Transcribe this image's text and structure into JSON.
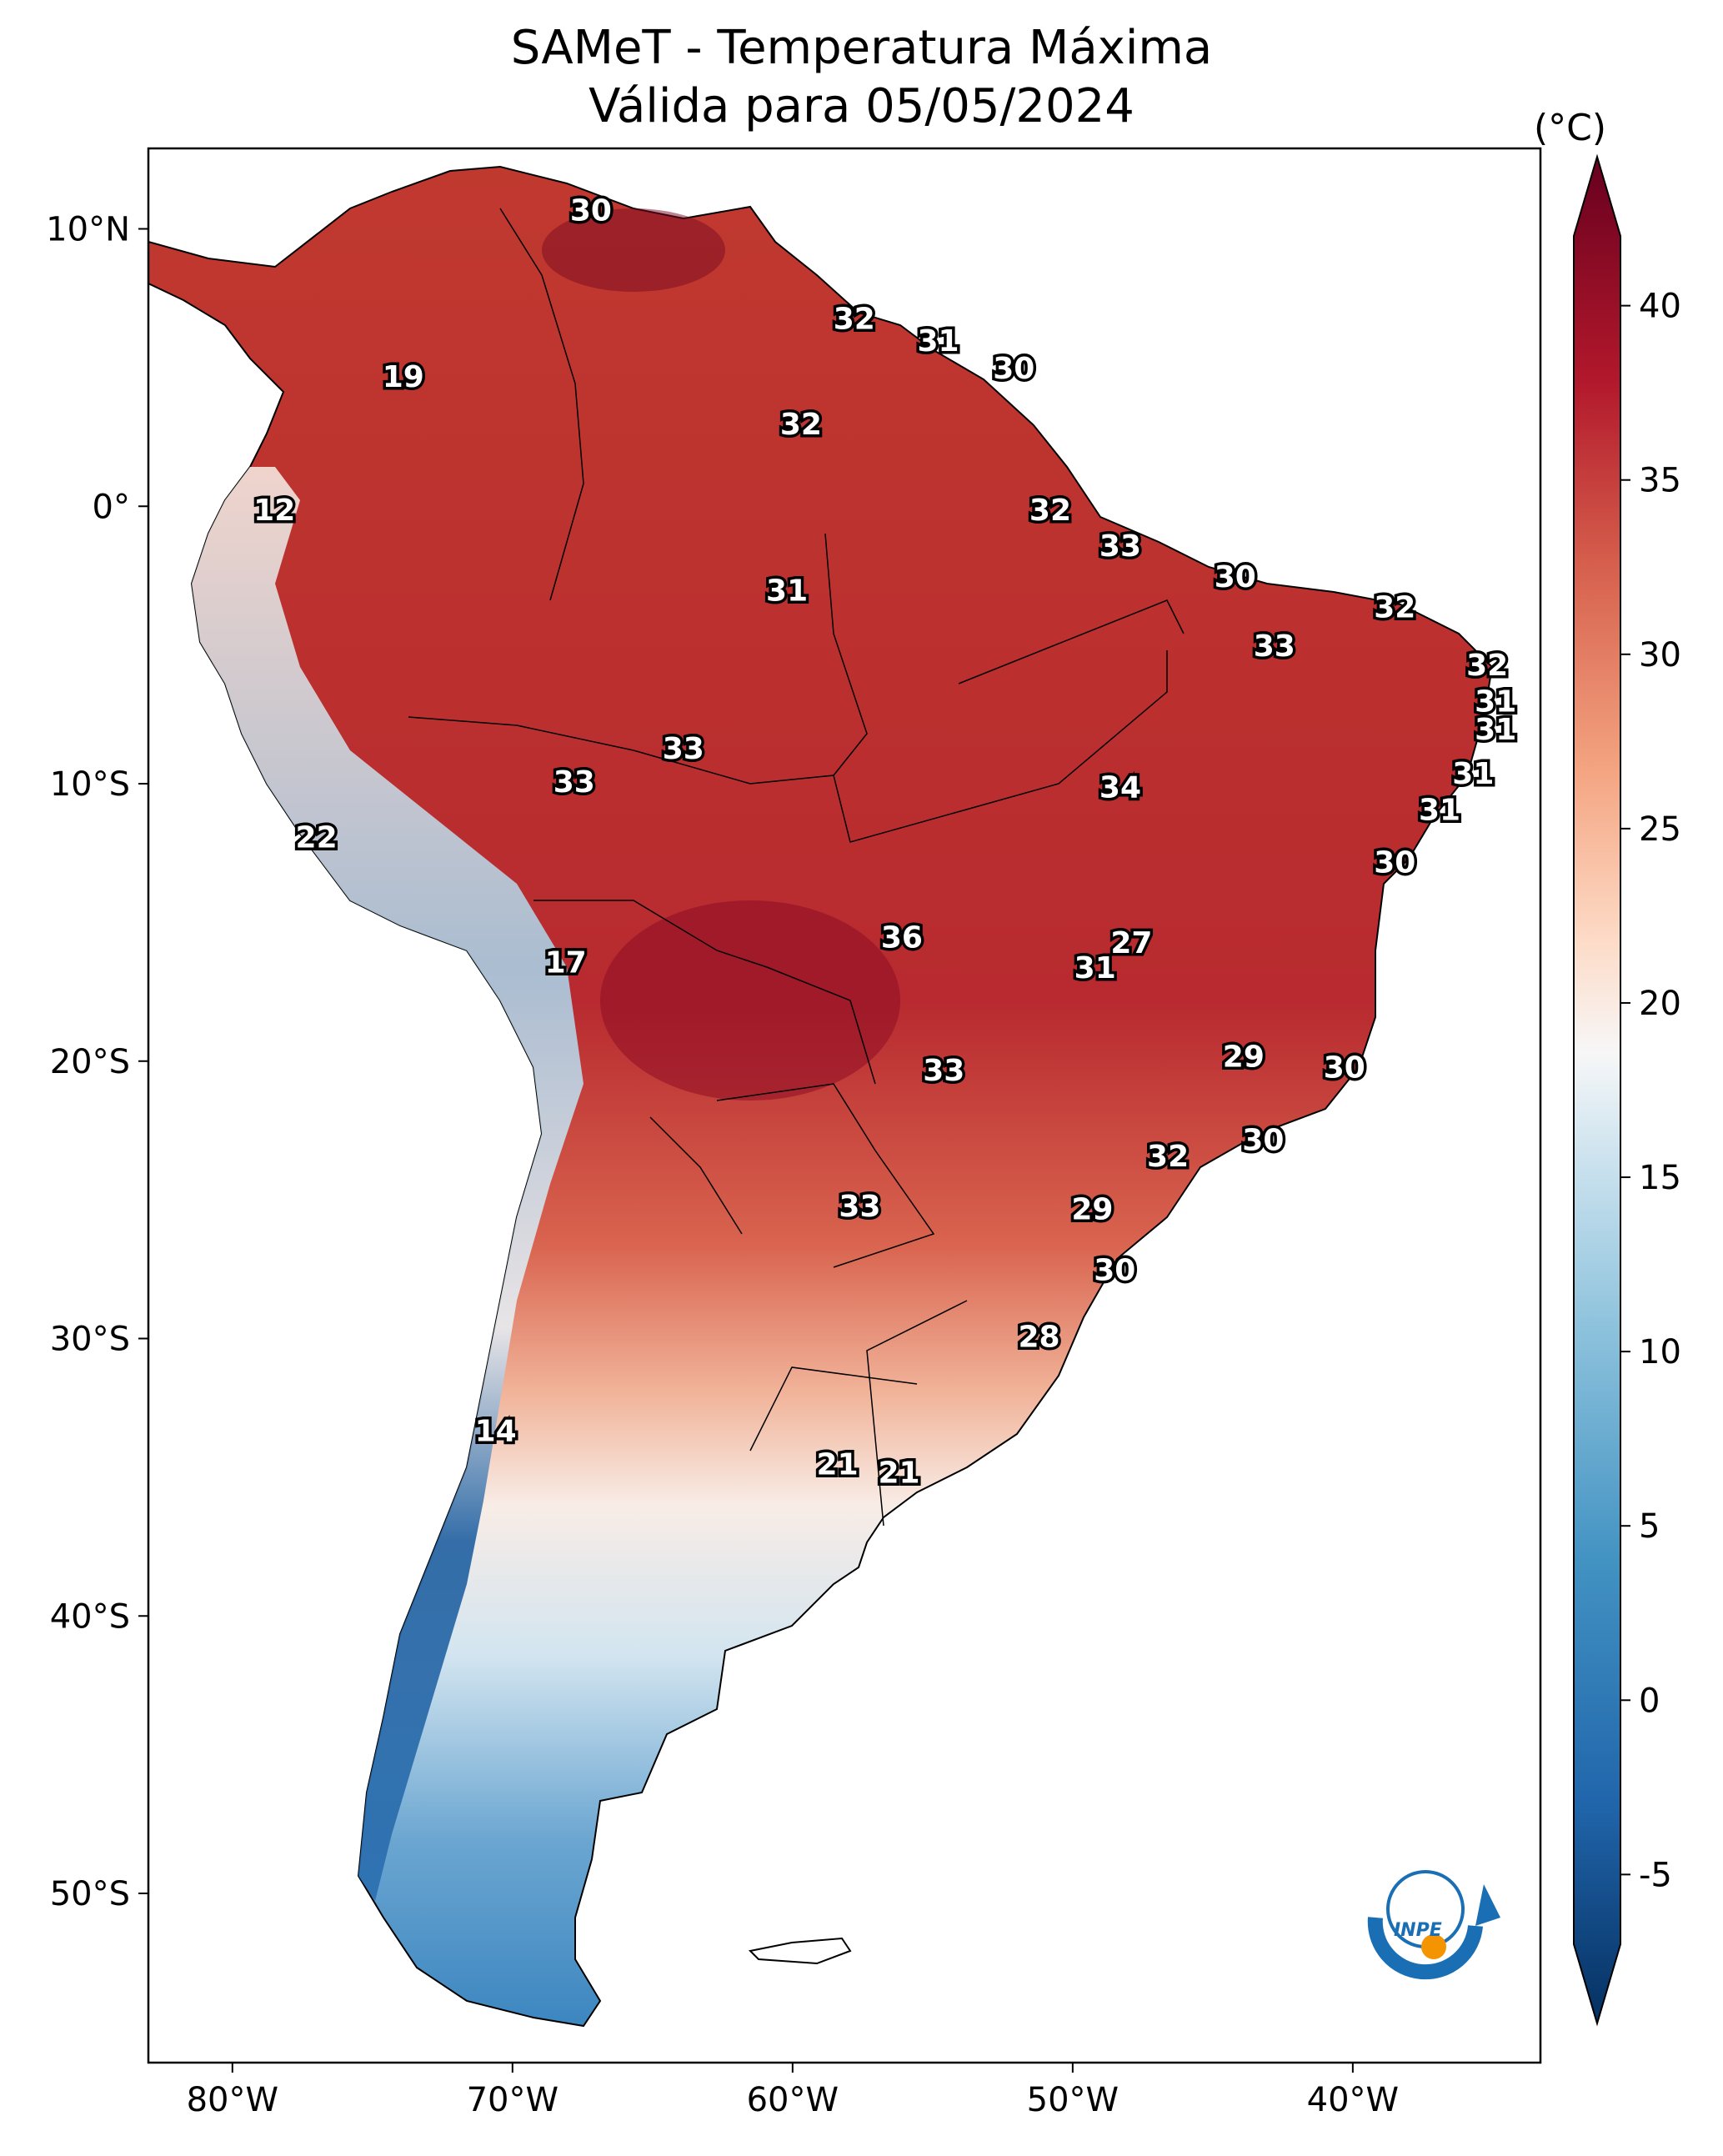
{
  "title": {
    "line1": "SAMeT - Temperatura Máxima",
    "line2": "Válida para 05/05/2024"
  },
  "map": {
    "lon_ticks": [
      "80°W",
      "70°W",
      "60°W",
      "50°W",
      "40°W"
    ],
    "lat_ticks": [
      "10°N",
      "0°",
      "10°S",
      "20°S",
      "30°S",
      "40°S",
      "50°S"
    ],
    "labels": [
      {
        "value": "30",
        "lon": -67.2,
        "lat": 10.6
      },
      {
        "value": "32",
        "lon": -57.8,
        "lat": 6.7
      },
      {
        "value": "31",
        "lon": -54.8,
        "lat": 5.9
      },
      {
        "value": "30",
        "lon": -52.1,
        "lat": 4.9
      },
      {
        "value": "19",
        "lon": -73.9,
        "lat": 4.6
      },
      {
        "value": "32",
        "lon": -59.7,
        "lat": 2.9
      },
      {
        "value": "12",
        "lon": -78.5,
        "lat": -0.2
      },
      {
        "value": "32",
        "lon": -50.8,
        "lat": -0.2
      },
      {
        "value": "33",
        "lon": -48.3,
        "lat": -1.5
      },
      {
        "value": "30",
        "lon": -44.2,
        "lat": -2.6
      },
      {
        "value": "31",
        "lon": -60.2,
        "lat": -3.1
      },
      {
        "value": "32",
        "lon": -38.5,
        "lat": -3.7
      },
      {
        "value": "33",
        "lon": -42.8,
        "lat": -5.1
      },
      {
        "value": "32",
        "lon": -35.2,
        "lat": -5.8
      },
      {
        "value": "31",
        "lon": -34.9,
        "lat": -7.1
      },
      {
        "value": "31",
        "lon": -34.9,
        "lat": -8.1
      },
      {
        "value": "33",
        "lon": -63.9,
        "lat": -8.8
      },
      {
        "value": "33",
        "lon": -67.8,
        "lat": -10.0
      },
      {
        "value": "31",
        "lon": -35.7,
        "lat": -9.7
      },
      {
        "value": "34",
        "lon": -48.3,
        "lat": -10.2
      },
      {
        "value": "31",
        "lon": -36.9,
        "lat": -11.0
      },
      {
        "value": "22",
        "lon": -77.0,
        "lat": -12.0
      },
      {
        "value": "30",
        "lon": -38.5,
        "lat": -12.9
      },
      {
        "value": "36",
        "lon": -56.1,
        "lat": -15.6
      },
      {
        "value": "27",
        "lon": -47.9,
        "lat": -15.8
      },
      {
        "value": "17",
        "lon": -68.1,
        "lat": -16.5
      },
      {
        "value": "31",
        "lon": -49.2,
        "lat": -16.7
      },
      {
        "value": "29",
        "lon": -43.9,
        "lat": -19.9
      },
      {
        "value": "33",
        "lon": -54.6,
        "lat": -20.4
      },
      {
        "value": "30",
        "lon": -40.3,
        "lat": -20.3
      },
      {
        "value": "30",
        "lon": -43.2,
        "lat": -22.9
      },
      {
        "value": "32",
        "lon": -46.6,
        "lat": -23.5
      },
      {
        "value": "33",
        "lon": -57.6,
        "lat": -25.3
      },
      {
        "value": "29",
        "lon": -49.3,
        "lat": -25.4
      },
      {
        "value": "30",
        "lon": -48.5,
        "lat": -27.6
      },
      {
        "value": "28",
        "lon": -51.2,
        "lat": -30.0
      },
      {
        "value": "14",
        "lon": -70.6,
        "lat": -33.4
      },
      {
        "value": "21",
        "lon": -58.4,
        "lat": -34.6
      },
      {
        "value": "21",
        "lon": -56.2,
        "lat": -34.9
      }
    ]
  },
  "colorbar": {
    "unit": "(°C)",
    "ticks": [
      "40",
      "35",
      "30",
      "25",
      "20",
      "15",
      "10",
      "5",
      "0",
      "-5"
    ],
    "colors": [
      "#053061",
      "#2166ac",
      "#4393c3",
      "#92c5de",
      "#d1e5f0",
      "#f7f7f7",
      "#fddbc7",
      "#f4a582",
      "#d6604d",
      "#b2182b",
      "#67001f"
    ]
  },
  "logo": {
    "text": "INPE"
  }
}
